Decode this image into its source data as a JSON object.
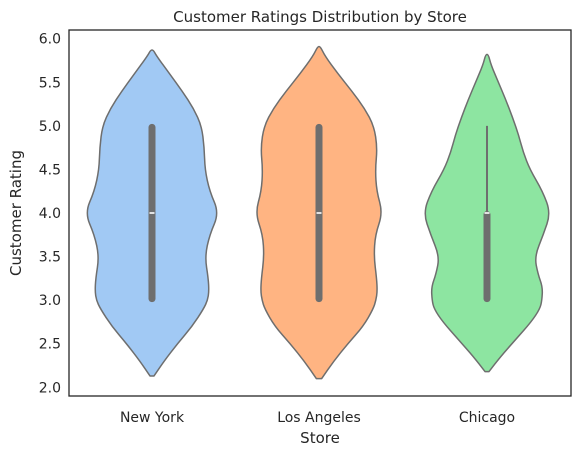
{
  "chart_data": {
    "type": "violin",
    "title": "Customer Ratings Distribution by Store",
    "xlabel": "Store",
    "ylabel": "Customer Rating",
    "categories": [
      "New York",
      "Los Angeles",
      "Chicago"
    ],
    "ylim": [
      1.9,
      6.1
    ],
    "yticks": [
      2.0,
      2.5,
      3.0,
      3.5,
      4.0,
      4.5,
      5.0,
      5.5,
      6.0
    ],
    "grid": false,
    "colors": {
      "violin_fill": [
        "#a1c9f4",
        "#ffb482",
        "#8de5a1"
      ],
      "violin_edge": "#6e6e6e",
      "box": "#6e6e6e",
      "median": "#ffffff",
      "axes": "#262626"
    },
    "series": [
      {
        "category": "New York",
        "extent": [
          2.13,
          5.87
        ],
        "whiskers": [
          3.0,
          5.0
        ],
        "q1": 3.0,
        "median": 4.0,
        "q3": 5.0,
        "density_profile": [
          [
            2.13,
            0.03
          ],
          [
            2.3,
            0.18
          ],
          [
            2.5,
            0.38
          ],
          [
            2.7,
            0.6
          ],
          [
            2.9,
            0.77
          ],
          [
            3.0,
            0.83
          ],
          [
            3.1,
            0.85
          ],
          [
            3.25,
            0.84
          ],
          [
            3.5,
            0.79
          ],
          [
            3.75,
            0.86
          ],
          [
            4.0,
            1.0
          ],
          [
            4.25,
            0.86
          ],
          [
            4.5,
            0.79
          ],
          [
            4.75,
            0.78
          ],
          [
            5.0,
            0.74
          ],
          [
            5.2,
            0.62
          ],
          [
            5.4,
            0.45
          ],
          [
            5.6,
            0.26
          ],
          [
            5.8,
            0.07
          ],
          [
            5.87,
            0.02
          ]
        ]
      },
      {
        "category": "Los Angeles",
        "extent": [
          2.1,
          5.91
        ],
        "whiskers": [
          3.0,
          5.0
        ],
        "q1": 3.0,
        "median": 4.0,
        "q3": 5.0,
        "density_profile": [
          [
            2.1,
            0.04
          ],
          [
            2.3,
            0.22
          ],
          [
            2.5,
            0.43
          ],
          [
            2.7,
            0.66
          ],
          [
            2.9,
            0.81
          ],
          [
            3.0,
            0.85
          ],
          [
            3.1,
            0.87
          ],
          [
            3.25,
            0.86
          ],
          [
            3.5,
            0.82
          ],
          [
            3.75,
            0.84
          ],
          [
            4.0,
            0.95
          ],
          [
            4.25,
            0.86
          ],
          [
            4.5,
            0.84
          ],
          [
            4.75,
            0.87
          ],
          [
            5.0,
            0.82
          ],
          [
            5.2,
            0.68
          ],
          [
            5.4,
            0.49
          ],
          [
            5.6,
            0.28
          ],
          [
            5.8,
            0.09
          ],
          [
            5.91,
            0.02
          ]
        ]
      },
      {
        "category": "Chicago",
        "extent": [
          2.18,
          5.82
        ],
        "whiskers": [
          3.0,
          5.0
        ],
        "q1": 3.0,
        "median": 4.0,
        "q3": 4.0,
        "density_profile": [
          [
            2.18,
            0.03
          ],
          [
            2.35,
            0.2
          ],
          [
            2.55,
            0.43
          ],
          [
            2.75,
            0.66
          ],
          [
            2.9,
            0.79
          ],
          [
            3.0,
            0.82
          ],
          [
            3.15,
            0.83
          ],
          [
            3.3,
            0.76
          ],
          [
            3.5,
            0.71
          ],
          [
            3.75,
            0.84
          ],
          [
            4.0,
            0.95
          ],
          [
            4.25,
            0.83
          ],
          [
            4.5,
            0.64
          ],
          [
            4.7,
            0.54
          ],
          [
            4.9,
            0.47
          ],
          [
            5.1,
            0.38
          ],
          [
            5.3,
            0.28
          ],
          [
            5.5,
            0.17
          ],
          [
            5.7,
            0.06
          ],
          [
            5.82,
            0.02
          ]
        ]
      }
    ]
  }
}
